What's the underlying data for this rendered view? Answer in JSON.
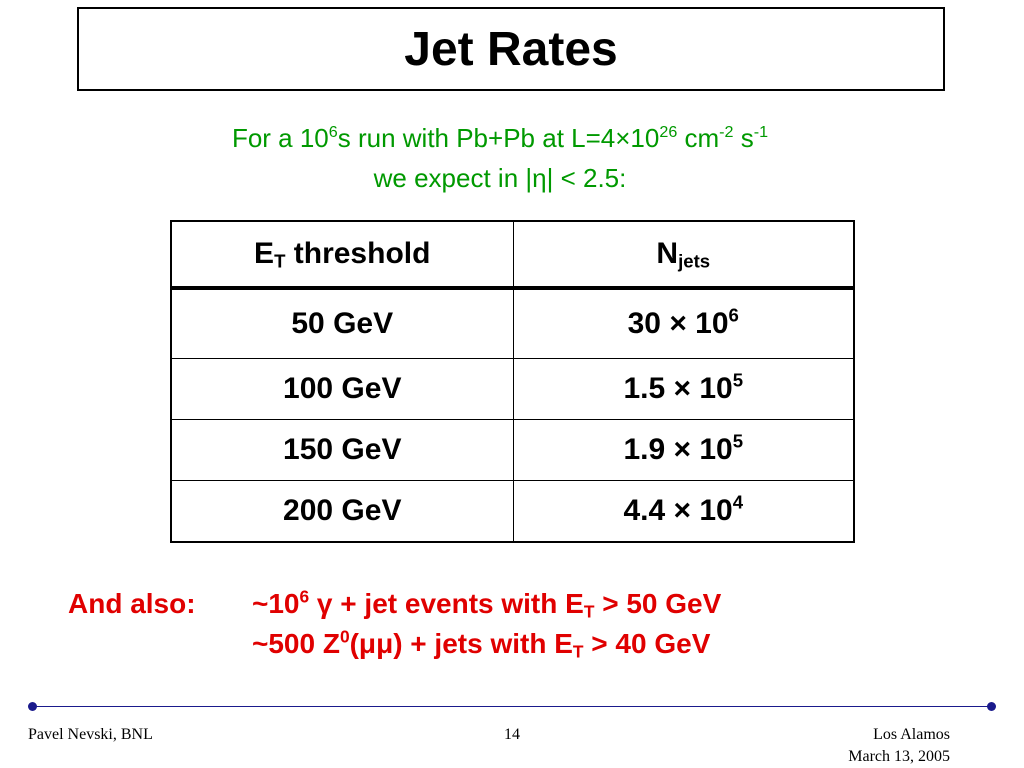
{
  "slide": {
    "title": "Jet Rates",
    "intro": {
      "line1_a": "For a 10",
      "line1_sup1": "6",
      "line1_b": "s run with Pb+Pb at L=4×10",
      "line1_sup2": "26",
      "line1_c": " cm",
      "line1_sup3": "-2",
      "line1_d": " s",
      "line1_sup4": "-1",
      "line2": "we expect in |η| < 2.5:"
    },
    "table": {
      "header": {
        "col1_main": "E",
        "col1_sub": "T",
        "col1_rest": " threshold",
        "col2_main": "N",
        "col2_sub": "jets"
      },
      "rows": [
        {
          "threshold": "50 GeV",
          "mant": "30 × 10",
          "exp": "6"
        },
        {
          "threshold": "100 GeV",
          "mant": "1.5 × 10",
          "exp": "5"
        },
        {
          "threshold": "150 GeV",
          "mant": "1.9 × 10",
          "exp": "5"
        },
        {
          "threshold": "200 GeV",
          "mant": "4.4 × 10",
          "exp": "4"
        }
      ]
    },
    "also": {
      "label": "And also:",
      "l1_a": "~10",
      "l1_sup": "6",
      "l1_b": " γ + jet events with E",
      "l1_sub": "T",
      "l1_c": " > 50 GeV",
      "l2_a": "~500 Z",
      "l2_sup": "0",
      "l2_b": "(μμ) + jets with E",
      "l2_sub": "T",
      "l2_c": " > 40 GeV"
    },
    "footer": {
      "author": "Pavel Nevski, BNL",
      "page": "14",
      "venue": "Los Alamos",
      "date": "March 13, 2005"
    },
    "colors": {
      "intro_text": "#009900",
      "also_text": "#e00000",
      "footer_rule": "#1a1a8c"
    }
  }
}
